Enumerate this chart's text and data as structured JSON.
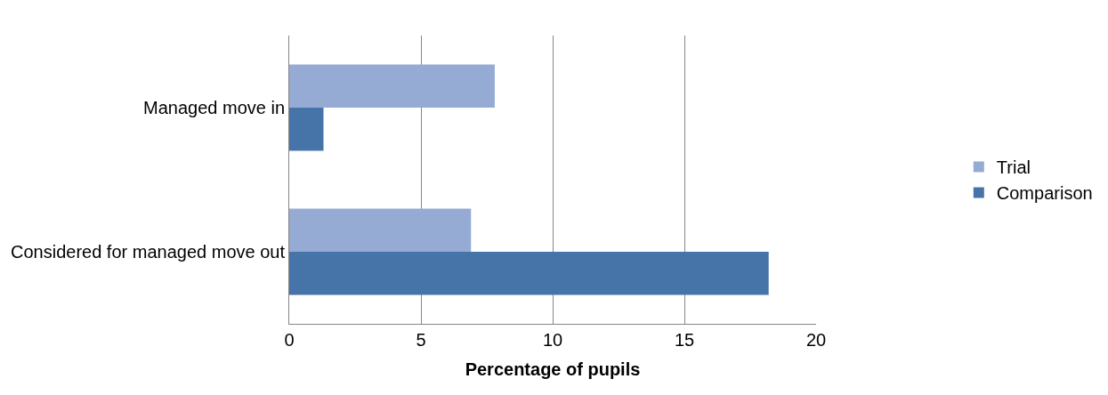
{
  "chart_data": {
    "type": "bar",
    "orientation": "horizontal",
    "xlabel": "Percentage of pupils",
    "categories": [
      "Managed move in",
      "Considered for managed move out"
    ],
    "series": [
      {
        "name": "Trial",
        "color": "#95abd3",
        "values": [
          7.8,
          6.9
        ]
      },
      {
        "name": "Comparison",
        "color": "#4674a9",
        "values": [
          1.3,
          18.2
        ]
      }
    ],
    "xlim": [
      0,
      20
    ],
    "xticks": [
      0,
      5,
      10,
      15,
      20
    ],
    "grid": "x",
    "legend": "right"
  }
}
